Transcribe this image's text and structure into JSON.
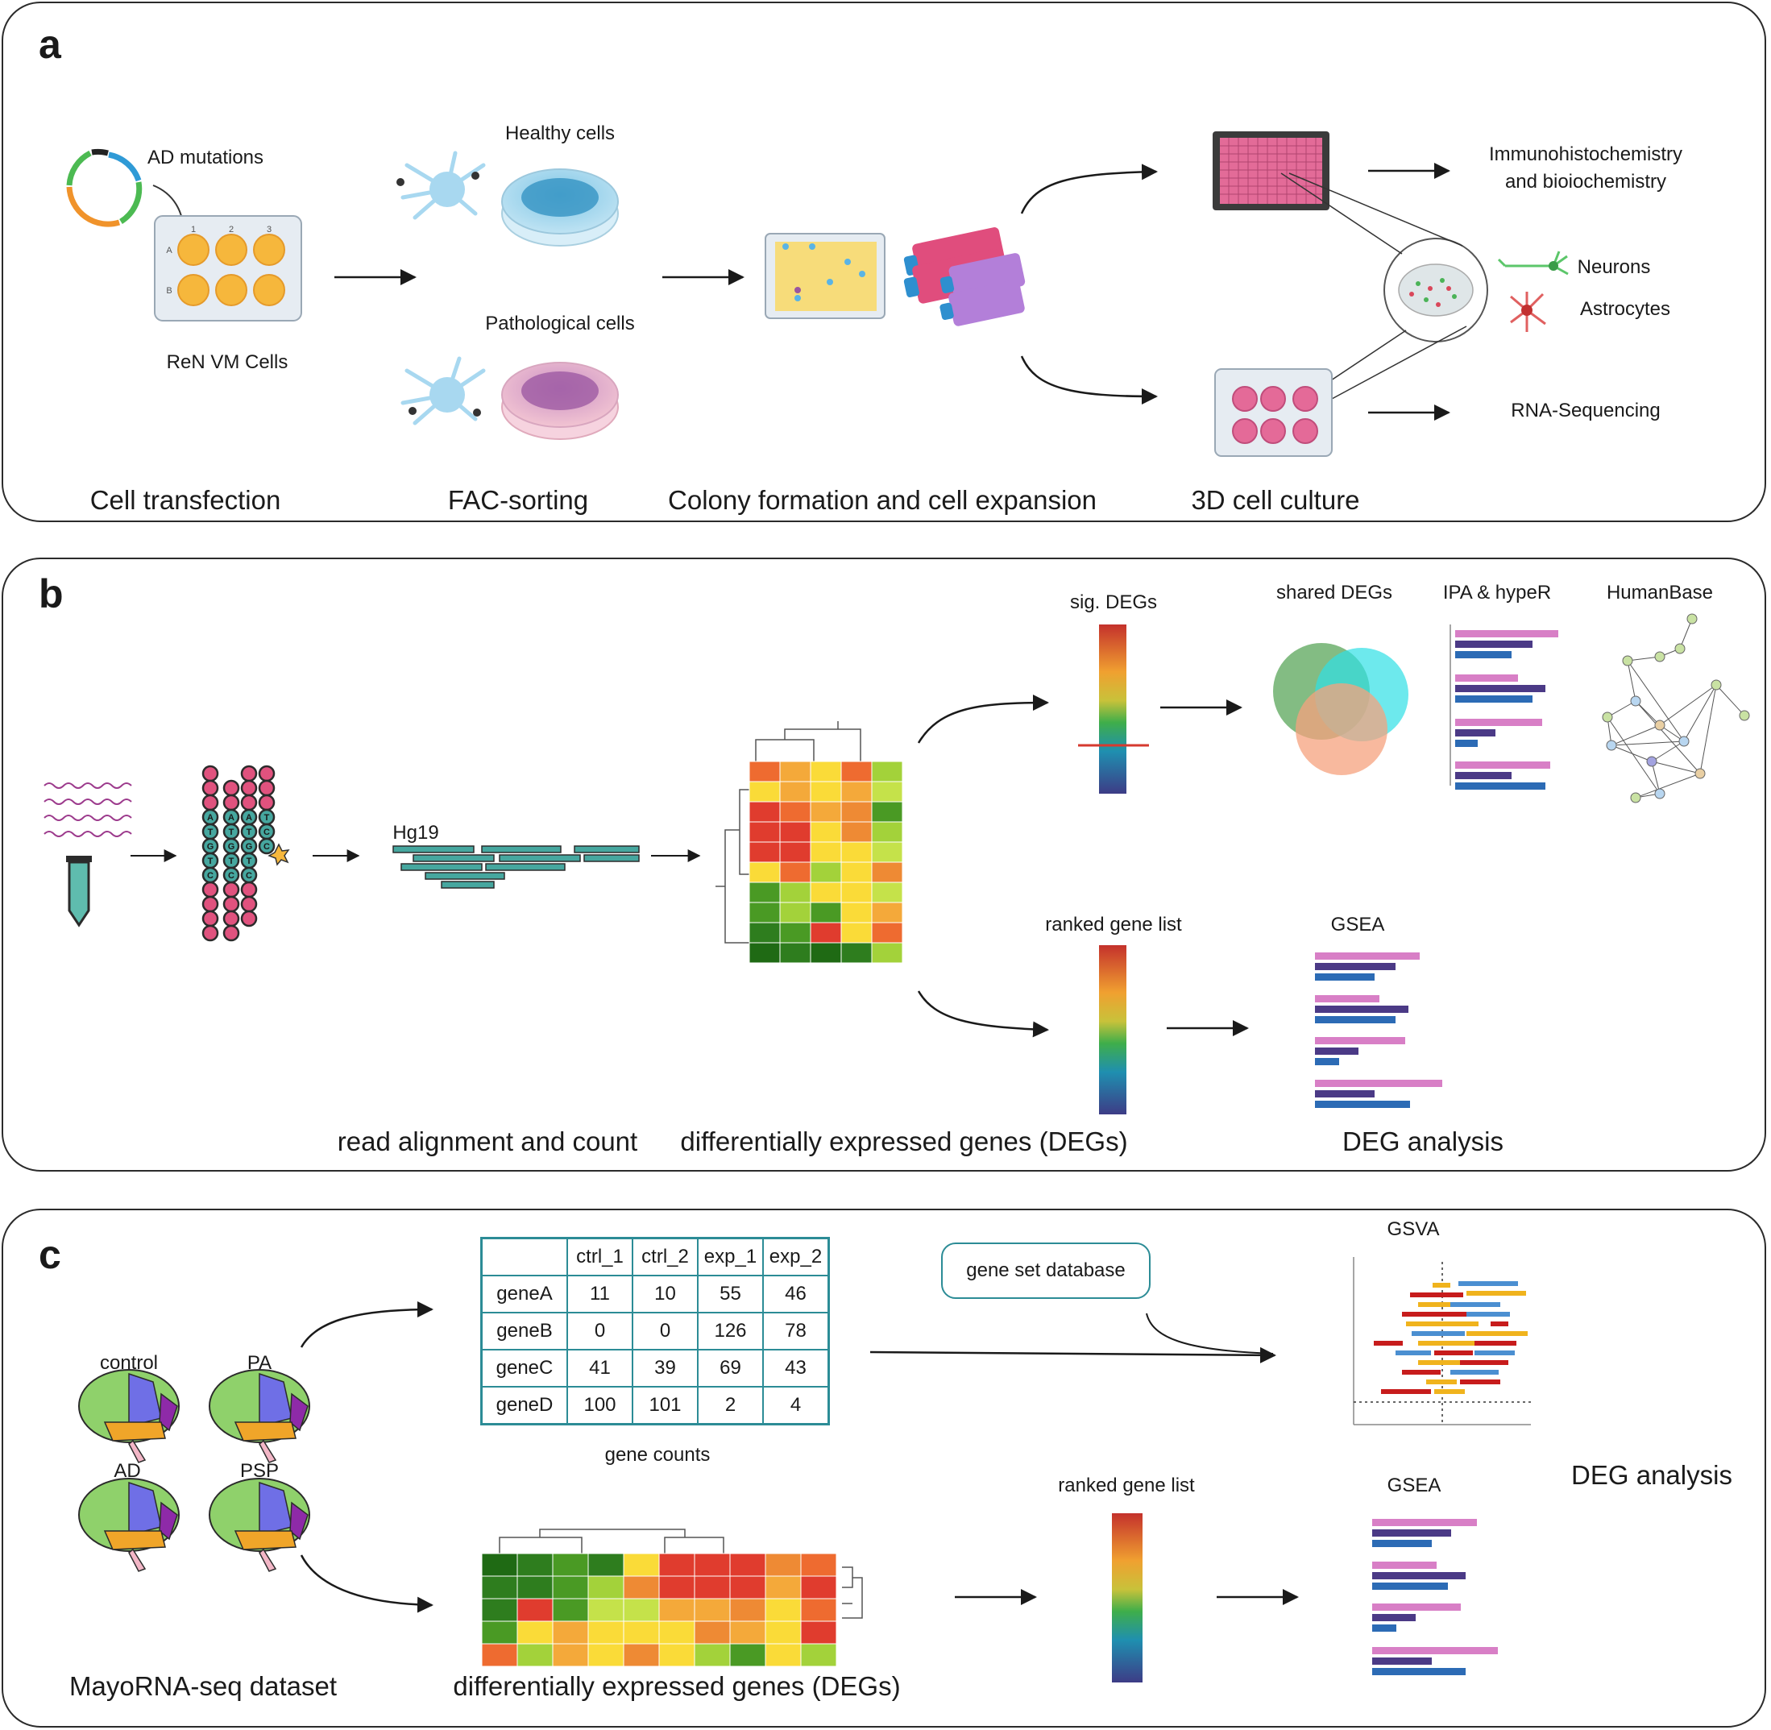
{
  "panel_a": {
    "letter": "a",
    "labels": {
      "ad_mutations": "AD mutations",
      "ren_vm": "ReN VM Cells",
      "healthy": "Healthy cells",
      "pathological": "Pathological cells",
      "immuno": "Immunohistochemistry",
      "immuno2": "and bioiochemistry",
      "neurons": "Neurons",
      "astrocytes": "Astrocytes",
      "rnaseq": "RNA-Sequencing"
    },
    "well_numbers": [
      "1",
      "2",
      "3"
    ],
    "well_rows": [
      "A",
      "B"
    ],
    "stages": [
      "Cell transfection",
      "FAC-sorting",
      "Colony formation and cell expansion",
      "3D cell culture"
    ]
  },
  "panel_b": {
    "letter": "b",
    "dna_letters": [
      [
        "A",
        "T",
        "G",
        "T",
        "C",
        "C"
      ],
      [
        "A",
        "T",
        "G",
        "T",
        "C"
      ],
      [
        "A",
        "T",
        "G",
        "T",
        "C"
      ],
      [
        "T",
        "C",
        "C"
      ]
    ],
    "labels": {
      "hg19": "Hg19",
      "sig_degs": "sig. DEGs",
      "shared": "shared DEGs",
      "ipa": "IPA & hypeR",
      "humanbase": "HumanBase",
      "ranked": "ranked gene list",
      "gsea": "GSEA"
    },
    "stages": [
      "read alignment and count",
      "differentially expressed genes (DEGs)",
      "DEG analysis"
    ]
  },
  "panel_c": {
    "letter": "c",
    "brains": [
      "control",
      "PA",
      "AD",
      "PSP"
    ],
    "gene_table": {
      "columns": [
        "ctrl_1",
        "ctrl_2",
        "exp_1",
        "exp_2"
      ],
      "rows": [
        {
          "gene": "geneA",
          "values": [
            "11",
            "10",
            "55",
            "46"
          ]
        },
        {
          "gene": "geneB",
          "values": [
            "0",
            "0",
            "126",
            "78"
          ]
        },
        {
          "gene": "geneC",
          "values": [
            "41",
            "39",
            "69",
            "43"
          ]
        },
        {
          "gene": "geneD",
          "values": [
            "100",
            "101",
            "2",
            "4"
          ]
        }
      ],
      "caption": "gene counts"
    },
    "labels": {
      "database": "gene set database",
      "gsva": "GSVA",
      "ranked": "ranked gene list",
      "gsea": "GSEA",
      "deg_analysis": "DEG analysis"
    },
    "stages": [
      "MayoRNA-seq dataset",
      "differentially expressed genes (DEGs)"
    ]
  },
  "colors": {
    "teal": "#46a79f",
    "pink": "#e0527e",
    "accent_red": "#d63a2f"
  }
}
